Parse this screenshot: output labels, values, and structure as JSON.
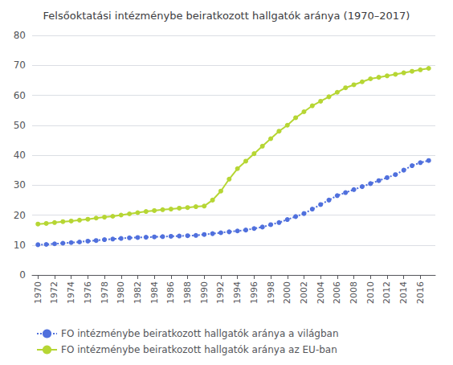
{
  "chart_data": {
    "type": "line",
    "title": "Felsőoktatási intézménybe beiratkozott hallgatók aránya (1970–2017)",
    "x": [
      1970,
      1971,
      1972,
      1973,
      1974,
      1975,
      1976,
      1977,
      1978,
      1979,
      1980,
      1981,
      1982,
      1983,
      1984,
      1985,
      1986,
      1987,
      1988,
      1989,
      1990,
      1991,
      1992,
      1993,
      1994,
      1995,
      1996,
      1997,
      1998,
      1999,
      2000,
      2001,
      2002,
      2003,
      2004,
      2005,
      2006,
      2007,
      2008,
      2009,
      2010,
      2011,
      2012,
      2013,
      2014,
      2015,
      2016,
      2017
    ],
    "series": [
      {
        "name": "FO intézménybe beiratkozott hallgatók aránya a világban",
        "marker": "circle",
        "line_style": "dotted",
        "values": [
          10.1,
          10.2,
          10.4,
          10.6,
          10.8,
          11.0,
          11.3,
          11.5,
          11.8,
          12.0,
          12.2,
          12.4,
          12.5,
          12.6,
          12.7,
          12.8,
          12.9,
          13.0,
          13.1,
          13.2,
          13.5,
          13.8,
          14.1,
          14.4,
          14.7,
          15.0,
          15.5,
          16.0,
          16.8,
          17.5,
          18.5,
          19.5,
          20.5,
          22.0,
          23.5,
          25.0,
          26.5,
          27.5,
          28.5,
          29.5,
          30.5,
          31.5,
          32.5,
          33.5,
          35.0,
          36.5,
          37.5,
          38.2
        ]
      },
      {
        "name": "FO intézménybe beiratkozott hallgatók aránya az EU-ban",
        "marker": "circle",
        "line_style": "solid",
        "values": [
          17.0,
          17.2,
          17.5,
          17.8,
          18.0,
          18.3,
          18.6,
          19.0,
          19.3,
          19.6,
          20.0,
          20.4,
          20.8,
          21.2,
          21.5,
          21.8,
          22.0,
          22.3,
          22.5,
          22.8,
          23.0,
          25.0,
          28.0,
          32.0,
          35.5,
          38.0,
          40.5,
          43.0,
          45.5,
          48.0,
          50.0,
          52.5,
          54.5,
          56.5,
          58.0,
          59.5,
          61.0,
          62.5,
          63.5,
          64.5,
          65.5,
          66.0,
          66.5,
          67.0,
          67.5,
          68.0,
          68.5,
          69.0
        ]
      }
    ],
    "xlim": [
      1969.3,
      2017.8
    ],
    "xticks": [
      1970,
      1972,
      1974,
      1976,
      1978,
      1980,
      1982,
      1984,
      1986,
      1988,
      1990,
      1992,
      1994,
      1996,
      1998,
      2000,
      2002,
      2004,
      2006,
      2008,
      2010,
      2012,
      2014,
      2016
    ],
    "ylim": [
      0,
      80
    ],
    "yticks": [
      0,
      10,
      20,
      30,
      40,
      50,
      60,
      70,
      80
    ],
    "grid": true,
    "legend": "bottom"
  }
}
